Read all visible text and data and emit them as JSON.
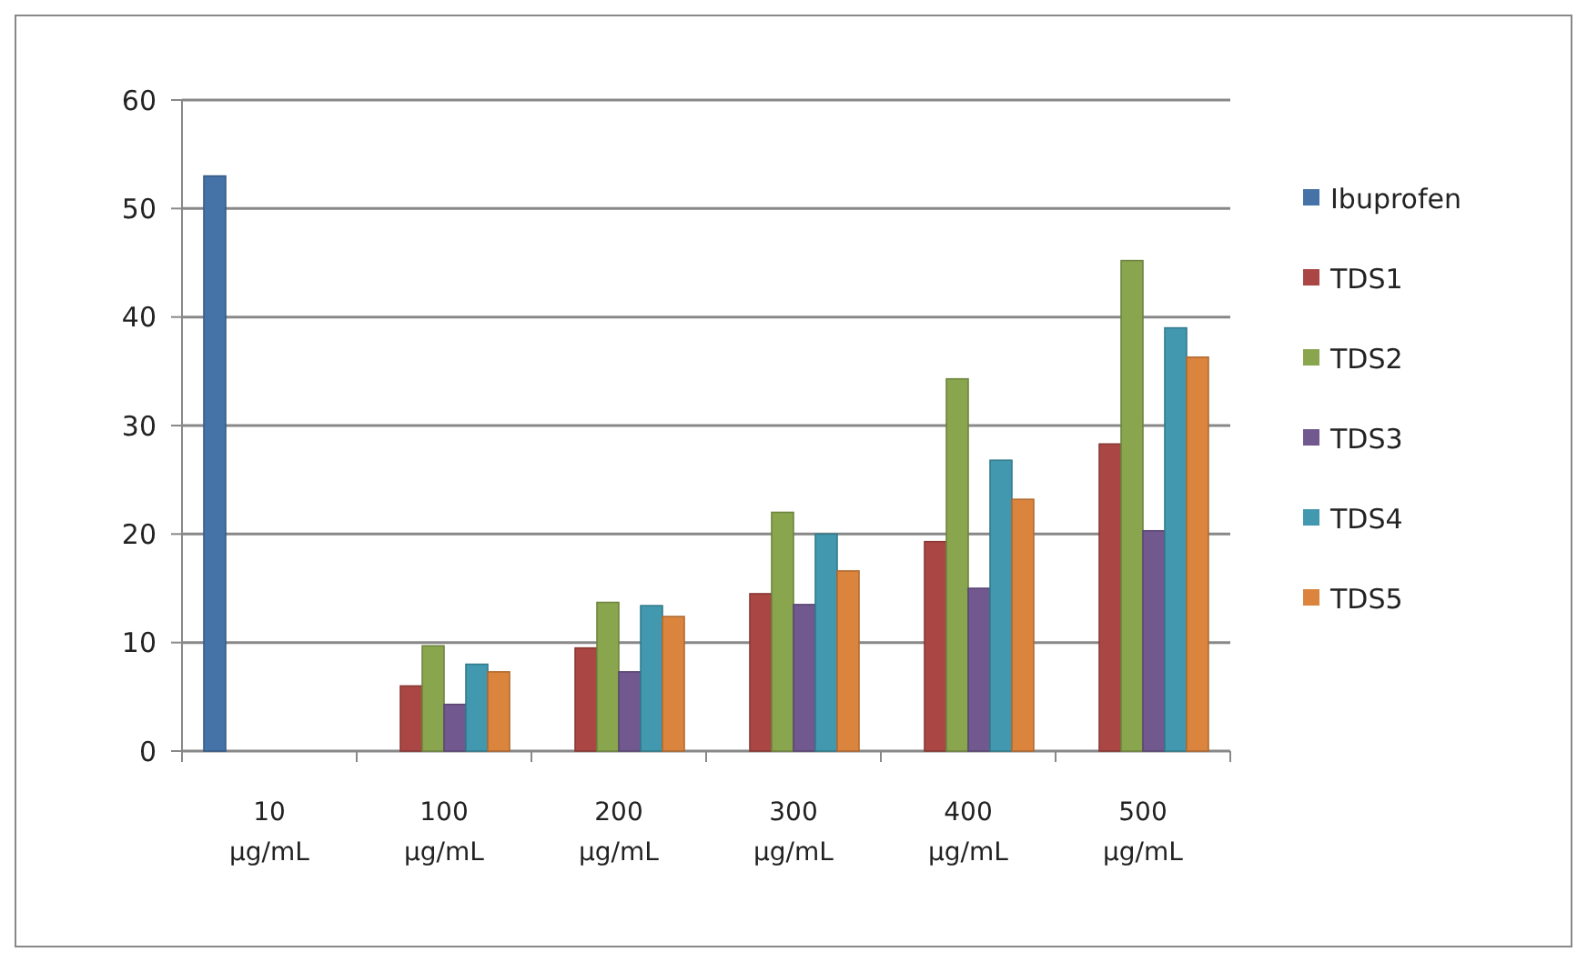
{
  "chart_data": {
    "type": "bar",
    "categories": [
      "10 µg/mL",
      "100 µg/mL",
      "200 µg/mL",
      "300 µg/mL",
      "400 µg/mL",
      "500 µg/mL"
    ],
    "series": [
      {
        "name": "Ibuprofen",
        "color": "#4572a7",
        "values": [
          53,
          null,
          null,
          null,
          null,
          null
        ]
      },
      {
        "name": "TDS1",
        "color": "#aa4643",
        "values": [
          null,
          6,
          9.5,
          14.5,
          19.3,
          28.3
        ]
      },
      {
        "name": "TDS2",
        "color": "#89a54e",
        "values": [
          null,
          9.7,
          13.7,
          22,
          34.3,
          45.2
        ]
      },
      {
        "name": "TDS3",
        "color": "#71588f",
        "values": [
          null,
          4.3,
          7.3,
          13.5,
          15,
          20.3
        ]
      },
      {
        "name": "TDS4",
        "color": "#4198af",
        "values": [
          null,
          8,
          13.4,
          20,
          26.8,
          39
        ]
      },
      {
        "name": "TDS5",
        "color": "#db843d",
        "values": [
          null,
          7.3,
          12.4,
          16.6,
          23.2,
          36.3
        ]
      }
    ],
    "ylim": [
      0,
      60
    ],
    "yticks": [
      0,
      10,
      20,
      30,
      40,
      50,
      60
    ],
    "grid": "y",
    "legend": "right"
  }
}
